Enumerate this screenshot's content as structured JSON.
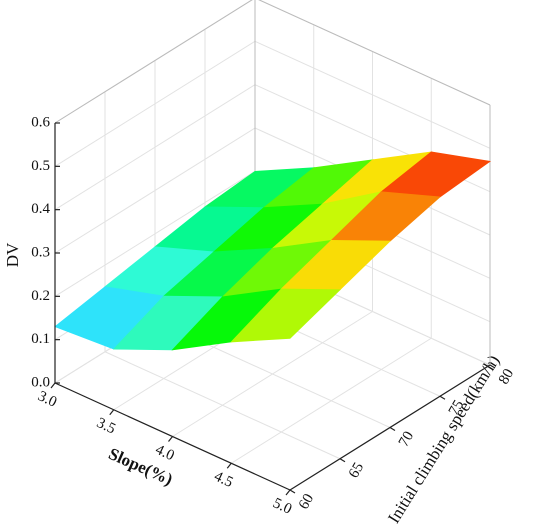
{
  "chart_data": {
    "type": "surface",
    "xlabel": "Slope(%)",
    "ylabel": "Initial climbing speed(km/h)",
    "zlabel": "DV",
    "x": [
      3.0,
      3.5,
      4.0,
      4.5,
      5.0
    ],
    "y": [
      60,
      65,
      70,
      75,
      80
    ],
    "z": [
      [
        0.13,
        0.15,
        0.17,
        0.19,
        0.2
      ],
      [
        0.14,
        0.19,
        0.22,
        0.25,
        0.27
      ],
      [
        0.2,
        0.25,
        0.29,
        0.32,
        0.35
      ],
      [
        0.28,
        0.33,
        0.37,
        0.41,
        0.43
      ],
      [
        0.35,
        0.39,
        0.43,
        0.46,
        0.47
      ]
    ],
    "xlim": [
      3,
      5
    ],
    "ylim": [
      60,
      80
    ],
    "zlim": [
      0,
      0.6
    ],
    "xticks": [
      {
        "value": 3,
        "label": "3.0"
      },
      3.5,
      {
        "value": 4,
        "label": "4.0"
      },
      4.5,
      {
        "value": 5,
        "label": "5.0"
      }
    ],
    "yticks": [
      60,
      65,
      70,
      75,
      80
    ],
    "zticks": [
      {
        "value": 0,
        "label": "0.0"
      },
      0.1,
      0.2,
      0.3,
      0.4,
      0.5,
      0.6
    ],
    "colormap": "jet",
    "grid": true
  }
}
